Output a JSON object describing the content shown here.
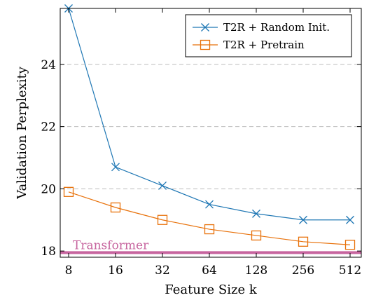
{
  "chart_data": {
    "type": "line",
    "xlabel": "Feature Size k",
    "ylabel": "Validation Perplexity",
    "x_scale": "log2",
    "categories": [
      "8",
      "16",
      "32",
      "64",
      "128",
      "256",
      "512"
    ],
    "x": [
      8,
      16,
      32,
      64,
      128,
      256,
      512
    ],
    "ylim": [
      17.8,
      25.8
    ],
    "yticks": [
      18,
      20,
      22,
      24
    ],
    "grid": "horizontal-dashed",
    "legend_position": "top-right",
    "series": [
      {
        "name": "T2R + Random Init.",
        "marker": "x",
        "color": "#1f77b4",
        "values": [
          25.8,
          20.7,
          20.1,
          19.5,
          19.2,
          19.0,
          19.0
        ]
      },
      {
        "name": "T2R + Pretrain",
        "marker": "square",
        "color": "#e8710a",
        "values": [
          19.9,
          19.4,
          19.0,
          18.7,
          18.5,
          18.3,
          18.2
        ]
      }
    ],
    "reference_line": {
      "label": "Transformer",
      "value": 17.95,
      "color": "#c7659f"
    }
  }
}
